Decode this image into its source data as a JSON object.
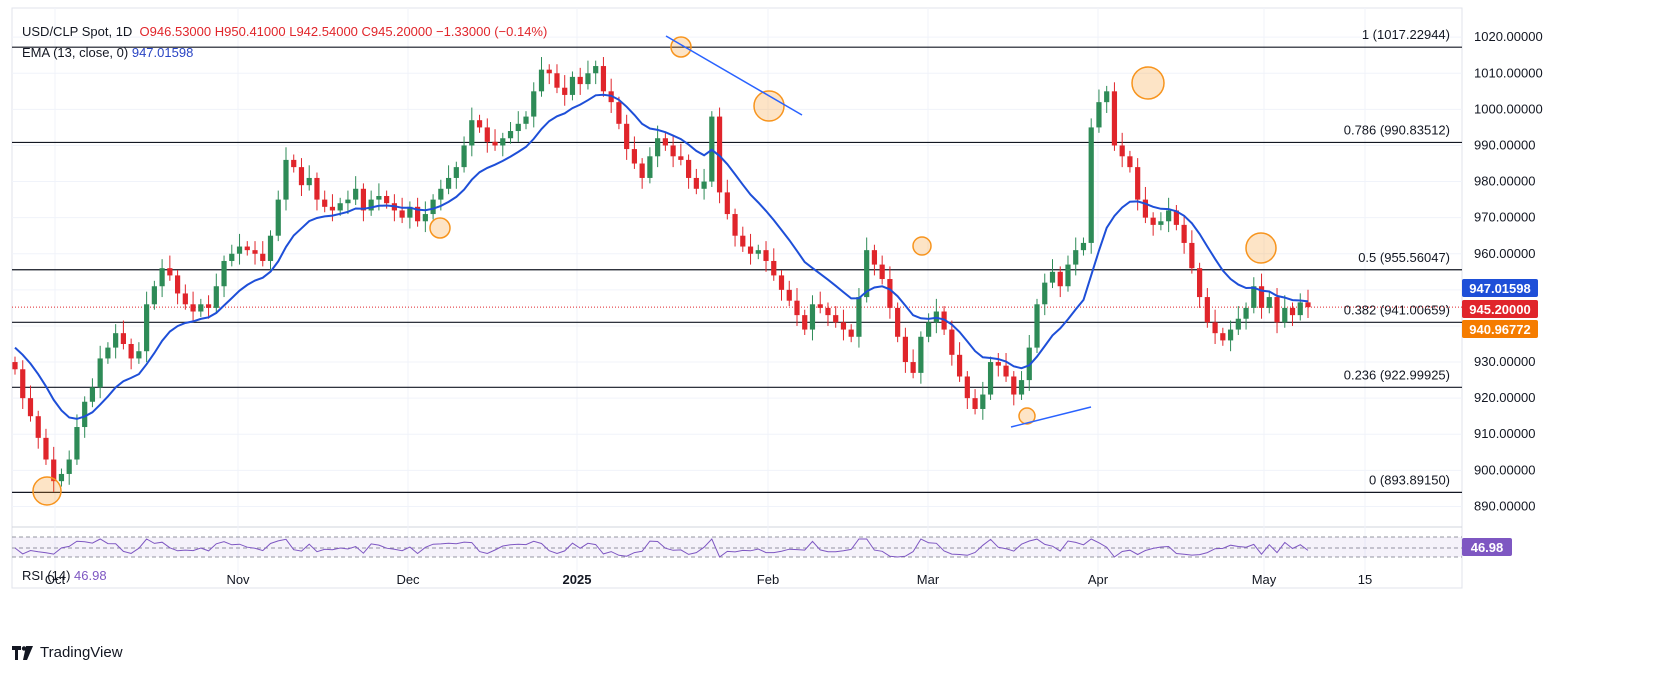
{
  "header": {
    "symbol": "USD/CLP Spot, 1D",
    "open": "O946.53000",
    "high": "H950.41000",
    "low": "L942.54000",
    "close": "C945.20000",
    "change": "−1.33000 (−0.14%)",
    "ema_label": "EMA (13, close, 0)",
    "ema_value": "947.01598",
    "rsi_label": "RSI (14)",
    "rsi_value": "46.98"
  },
  "brand": {
    "name": "TradingView"
  },
  "colors": {
    "up": "#2e8b57",
    "down": "#e0252b",
    "ema": "#1e4fd8",
    "rsi": "#7e57c2",
    "marker": "#f7941d",
    "price_tag": "#e0252b",
    "ema_tag": "#1e4fd8",
    "fib_tag": "#f57c00"
  },
  "chart_data": {
    "type": "candlestick",
    "title": "USD/CLP Spot, 1D",
    "ylim": [
      884,
      1024
    ],
    "y_ticks": [
      "890.00000",
      "900.00000",
      "910.00000",
      "920.00000",
      "930.00000",
      "940.00000",
      "950.00000",
      "960.00000",
      "970.00000",
      "980.00000",
      "990.00000",
      "1000.00000",
      "1010.00000",
      "1020.00000"
    ],
    "x_ticks": [
      "Oct",
      "Nov",
      "Dec",
      "2025",
      "Feb",
      "Mar",
      "Apr",
      "May",
      "15"
    ],
    "fib_levels": [
      {
        "label": "1 (1017.22944)",
        "value": 1017.22944
      },
      {
        "label": "0.786 (990.83512)",
        "value": 990.83512
      },
      {
        "label": "0.5 (955.56047)",
        "value": 955.56047
      },
      {
        "label": "0.382 (941.00659)",
        "value": 941.00659
      },
      {
        "label": "0.236 (922.99925)",
        "value": 922.99925
      },
      {
        "label": "0 (893.89150)",
        "value": 893.8915
      }
    ],
    "price_tags": [
      {
        "label": "947.01598",
        "value": 947.01598,
        "kind": "ema"
      },
      {
        "label": "945.20000",
        "value": 945.2,
        "kind": "price"
      },
      {
        "label": "940.96772",
        "value": 940.96772,
        "kind": "fib"
      }
    ],
    "rsi_tag": "46.98",
    "closes": [
      928,
      920,
      915,
      909,
      903,
      897,
      899,
      903,
      912,
      919,
      923,
      931,
      934,
      938,
      935,
      931,
      933,
      946,
      951,
      956,
      954,
      949,
      946,
      944,
      946,
      945,
      951,
      958,
      960,
      962,
      961,
      960,
      958,
      965,
      975,
      986,
      984,
      979,
      981,
      975,
      973,
      972,
      974,
      975,
      978,
      972,
      975,
      976,
      974,
      972,
      970,
      973,
      969,
      971,
      975,
      978,
      981,
      984,
      990,
      997,
      995,
      991,
      990,
      992,
      994,
      996,
      998,
      1005,
      1011,
      1010,
      1006,
      1004,
      1009,
      1007,
      1010,
      1012,
      1005,
      1002,
      996,
      989,
      985,
      981,
      987,
      992,
      990,
      987,
      986,
      981,
      978,
      980,
      998,
      977,
      971,
      965,
      962,
      960,
      961,
      958,
      954,
      950,
      947,
      943,
      939,
      946,
      945,
      943,
      941,
      939,
      937,
      948,
      961,
      957,
      953,
      945,
      937,
      930,
      927,
      937,
      941,
      944,
      939,
      932,
      926,
      920,
      917,
      921,
      930,
      929,
      926,
      921,
      925,
      934,
      946,
      952,
      955,
      951,
      957,
      961,
      963,
      995,
      1002,
      1005,
      990,
      987,
      984,
      975,
      970,
      968,
      969,
      972,
      968,
      963,
      956,
      948,
      941,
      938,
      936,
      939,
      942,
      945,
      951,
      945,
      948,
      941,
      945,
      943,
      946.53,
      945.2
    ],
    "ema_last": 947.01598
  }
}
